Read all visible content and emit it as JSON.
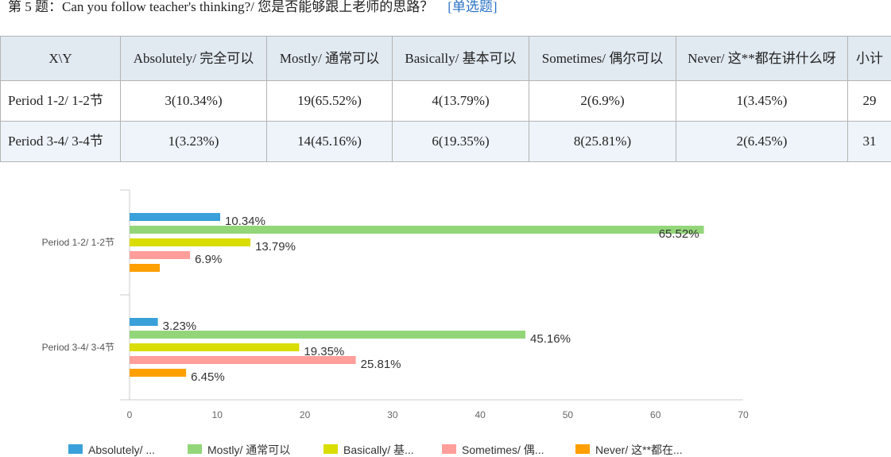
{
  "question": {
    "title": "第 5 题：Can you follow teacher's thinking?/ 您是否能够跟上老师的思路？",
    "type_label": "[单选题]"
  },
  "table": {
    "corner": "X\\Y",
    "columns": [
      "Absolutely/ 完全可以",
      "Mostly/ 通常可以",
      "Basically/ 基本可以",
      "Sometimes/ 偶尔可以",
      "Never/ 这**都在讲什么呀",
      "小计"
    ],
    "rows": [
      {
        "label": "Period 1-2/ 1-2节",
        "cells": [
          "3(10.34%)",
          "19(65.52%)",
          "4(13.79%)",
          "2(6.9%)",
          "1(3.45%)",
          "29"
        ]
      },
      {
        "label": "Period 3-4/ 3-4节",
        "cells": [
          "1(3.23%)",
          "14(45.16%)",
          "6(19.35%)",
          "8(25.81%)",
          "2(6.45%)",
          "31"
        ]
      }
    ]
  },
  "chart_data": {
    "type": "bar",
    "orientation": "horizontal",
    "categories": [
      "Period 1-2/ 1-2节",
      "Period 3-4/ 3-4节"
    ],
    "series": [
      {
        "name": "Absolutely/ ...",
        "color": "#3aa0da",
        "values": [
          10.34,
          3.23
        ],
        "labels": [
          "10.34%",
          "3.23%"
        ]
      },
      {
        "name": "Mostly/ 通常可以",
        "color": "#93d67a",
        "values": [
          65.52,
          45.16
        ],
        "labels": [
          "65.52%",
          "45.16%"
        ]
      },
      {
        "name": "Basically/ 基...",
        "color": "#d9dd00",
        "values": [
          13.79,
          19.35
        ],
        "labels": [
          "13.79%",
          "19.35%"
        ]
      },
      {
        "name": "Sometimes/ 偶...",
        "color": "#ff9e9a",
        "values": [
          6.9,
          25.81
        ],
        "labels": [
          "6.9%",
          "25.81%"
        ]
      },
      {
        "name": "Never/ 这**都在...",
        "color": "#ff9f00",
        "values": [
          3.45,
          6.45
        ],
        "labels": [
          "",
          "6.45%"
        ]
      }
    ],
    "xlim": [
      0,
      70
    ],
    "xticks": [
      0,
      10,
      20,
      30,
      40,
      50,
      60,
      70
    ],
    "grid": false,
    "legend_position": "bottom"
  }
}
